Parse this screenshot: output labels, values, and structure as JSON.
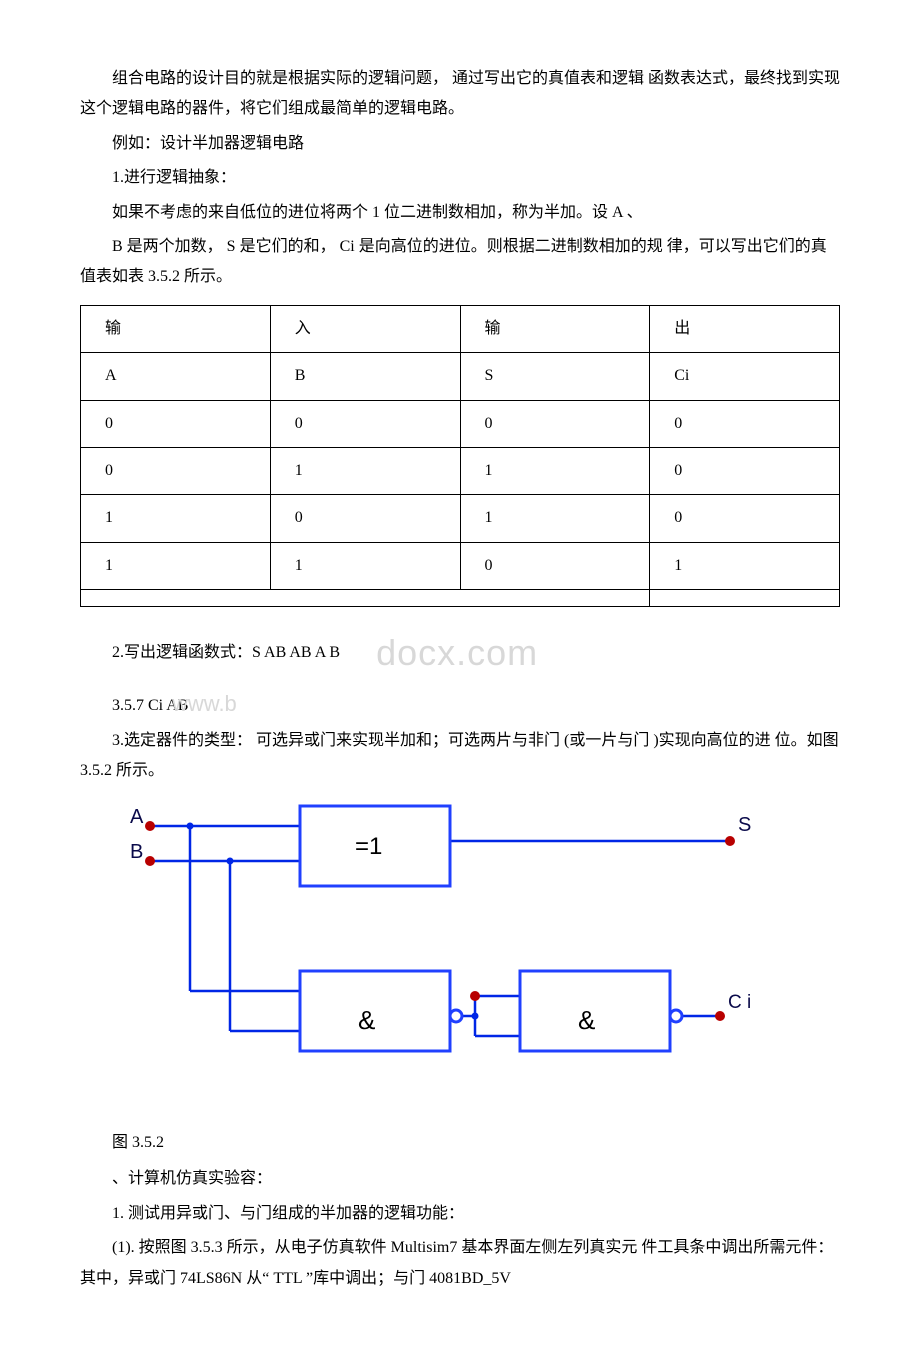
{
  "para1": "组合电路的设计目的就是根据实际的逻辑问题， 通过写出它的真值表和逻辑 函数表达式，最终找到实现这个逻辑电路的器件，将它们组成最简单的逻辑电路。",
  "para2": "例如：设计半加器逻辑电路",
  "para3": "1.进行逻辑抽象：",
  "para4": "如果不考虑的来自低位的进位将两个 1 位二进制数相加，称为半加。设 A 、",
  "para5": "B 是两个加数， S 是它们的和， Ci 是向高位的进位。则根据二进制数相加的规 律，可以写出它们的真值表如表 3.5.2 所示。",
  "table": {
    "r0": [
      "输",
      "入",
      "输",
      "出"
    ],
    "r1": [
      "A",
      "B",
      "S",
      "Ci"
    ],
    "r2": [
      "0",
      "0",
      "0",
      "0"
    ],
    "r3": [
      "0",
      "1",
      "1",
      "0"
    ],
    "r4": [
      "1",
      "0",
      "1",
      "0"
    ],
    "r5": [
      "1",
      "1",
      "0",
      "1"
    ]
  },
  "para6": "2.写出逻辑函数式：S AB AB A B",
  "watermark_small": "www.b",
  "watermark_large": "docx.com",
  "para7": " 3.5.7 Ci AB",
  "para8": "3.选定器件的类型： 可选异或门来实现半加和；可选两片与非门 (或一片与门 )实现向高位的进 位。如图 3.5.2 所示。",
  "circuit": {
    "labels": {
      "A": "A",
      "B": "B",
      "S": "S",
      "Ci": "C i",
      "xor": "=1",
      "and": "&"
    },
    "col_wire": "#0026e6",
    "col_box_border": "#2040ff",
    "col_box_fill": "#ffffff",
    "col_node": "#b80000",
    "col_text": "#0a0a4a",
    "wire_w": 2.5,
    "box_border_w": 3,
    "node_r": 5
  },
  "para9": "图 3.5.2",
  "para10": "、计算机仿真实验容：",
  "para11": "1. 测试用异或门、与门组成的半加器的逻辑功能：",
  "para12": "(1). 按照图 3.5.3 所示，从电子仿真软件 Multisim7 基本界面左侧左列真实元 件工具条中调出所需元件：其中，异或门 74LS86N 从“ TTL ”库中调出；与门 4081BD_5V"
}
